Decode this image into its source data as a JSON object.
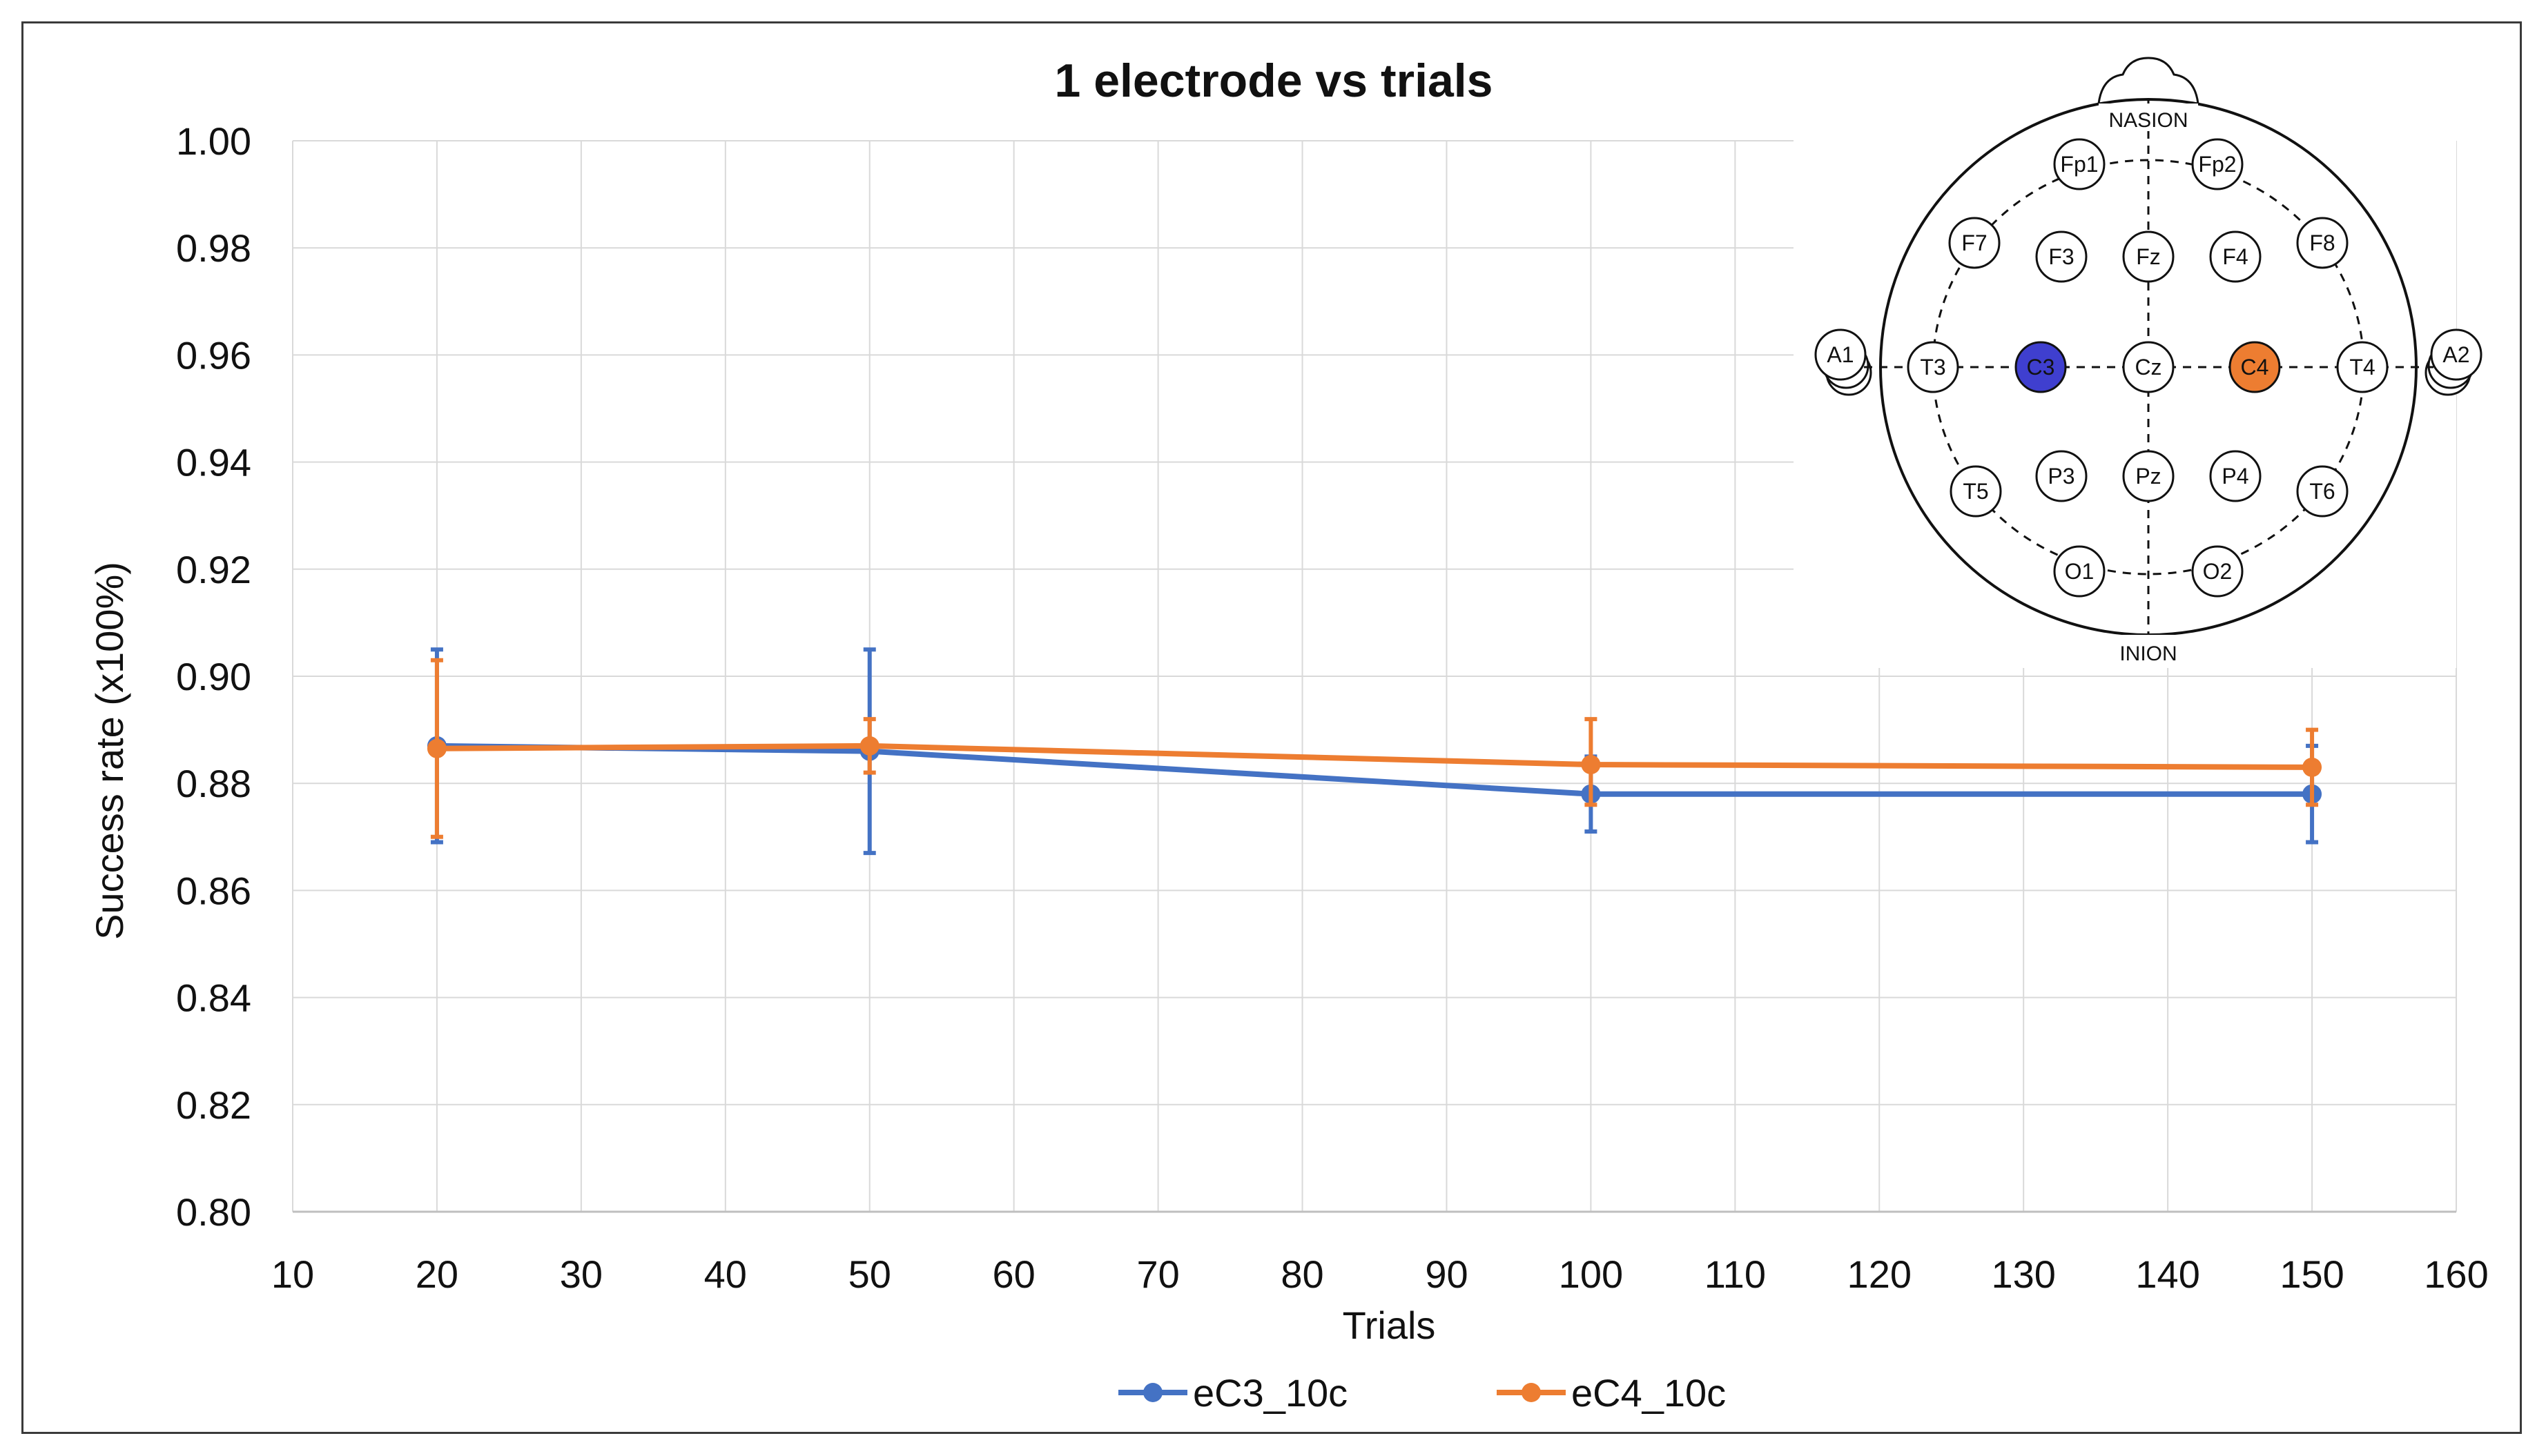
{
  "chart_data": {
    "type": "line",
    "title": "1 electrode vs trials",
    "xlabel": "Trials",
    "ylabel": "Success rate (x100%)",
    "xlim": [
      10,
      160
    ],
    "ylim": [
      0.8,
      1.0
    ],
    "xticks": [
      "10",
      "20",
      "30",
      "40",
      "50",
      "60",
      "70",
      "80",
      "90",
      "100",
      "110",
      "120",
      "130",
      "140",
      "150",
      "160"
    ],
    "yticks": [
      "0.80",
      "0.82",
      "0.84",
      "0.86",
      "0.88",
      "0.90",
      "0.92",
      "0.94",
      "0.96",
      "0.98",
      "1.00"
    ],
    "grid": true,
    "legend_position": "bottom",
    "x": [
      20,
      50,
      100,
      150
    ],
    "series": [
      {
        "name": "eC3_10c",
        "color": "#4472C4",
        "values": [
          0.887,
          0.886,
          0.878,
          0.878
        ],
        "error_low": [
          0.869,
          0.867,
          0.871,
          0.869
        ],
        "error_high": [
          0.905,
          0.905,
          0.885,
          0.887
        ]
      },
      {
        "name": "eC4_10c",
        "color": "#ED7D31",
        "values": [
          0.8865,
          0.887,
          0.8835,
          0.883
        ],
        "error_low": [
          0.87,
          0.882,
          0.876,
          0.876
        ],
        "error_high": [
          0.903,
          0.892,
          0.892,
          0.89
        ]
      }
    ]
  },
  "inset": {
    "top_label": "NASION",
    "bottom_label": "INION",
    "electrodes": [
      "Fp1",
      "Fp2",
      "F7",
      "F3",
      "Fz",
      "F4",
      "F8",
      "A1",
      "T3",
      "C3",
      "Cz",
      "C4",
      "T4",
      "A2",
      "T5",
      "P3",
      "Pz",
      "P4",
      "T6",
      "O1",
      "O2"
    ],
    "highlight": {
      "C3": "#3F3FCF",
      "C4": "#ED7D31"
    }
  }
}
